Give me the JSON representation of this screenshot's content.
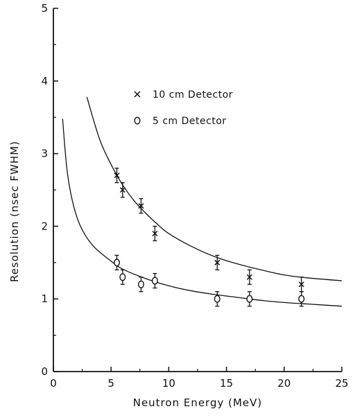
{
  "chart_data": {
    "type": "scatter",
    "title": "",
    "xlabel": "Neutron Energy (MeV)",
    "ylabel": "Resolution (nsec FWHM)",
    "xlim": [
      0,
      25
    ],
    "ylim": [
      0,
      5
    ],
    "xticks": [
      0,
      5,
      10,
      15,
      20,
      25
    ],
    "yticks": [
      0,
      1,
      2,
      3,
      4,
      5
    ],
    "grid": false,
    "legend_position": "top-center",
    "series": [
      {
        "name": "10 cm Detector",
        "marker": "x",
        "points": [
          {
            "x": 5.5,
            "y": 2.7,
            "err": 0.1
          },
          {
            "x": 6.0,
            "y": 2.5,
            "err": 0.1
          },
          {
            "x": 7.6,
            "y": 2.28,
            "err": 0.1
          },
          {
            "x": 8.8,
            "y": 1.9,
            "err": 0.1
          },
          {
            "x": 14.2,
            "y": 1.5,
            "err": 0.1
          },
          {
            "x": 17.0,
            "y": 1.3,
            "err": 0.1
          },
          {
            "x": 21.5,
            "y": 1.2,
            "err": 0.1
          }
        ],
        "curve": [
          {
            "x": 2.9,
            "y": 3.78
          },
          {
            "x": 4,
            "y": 3.2
          },
          {
            "x": 5,
            "y": 2.85
          },
          {
            "x": 6,
            "y": 2.57
          },
          {
            "x": 7,
            "y": 2.35
          },
          {
            "x": 8,
            "y": 2.18
          },
          {
            "x": 9,
            "y": 2.03
          },
          {
            "x": 10,
            "y": 1.9
          },
          {
            "x": 12,
            "y": 1.72
          },
          {
            "x": 14,
            "y": 1.58
          },
          {
            "x": 16,
            "y": 1.48
          },
          {
            "x": 18,
            "y": 1.4
          },
          {
            "x": 20,
            "y": 1.33
          },
          {
            "x": 22,
            "y": 1.29
          },
          {
            "x": 25,
            "y": 1.25
          }
        ]
      },
      {
        "name": "5 cm Detector",
        "marker": "o",
        "points": [
          {
            "x": 5.5,
            "y": 1.5,
            "err": 0.1
          },
          {
            "x": 6.0,
            "y": 1.3,
            "err": 0.1
          },
          {
            "x": 7.6,
            "y": 1.2,
            "err": 0.1
          },
          {
            "x": 8.8,
            "y": 1.25,
            "err": 0.1
          },
          {
            "x": 14.2,
            "y": 1.0,
            "err": 0.1
          },
          {
            "x": 17.0,
            "y": 1.0,
            "err": 0.1
          },
          {
            "x": 21.5,
            "y": 1.0,
            "err": 0.1
          }
        ],
        "curve": [
          {
            "x": 0.8,
            "y": 3.48
          },
          {
            "x": 1.2,
            "y": 2.75
          },
          {
            "x": 1.8,
            "y": 2.25
          },
          {
            "x": 2.5,
            "y": 1.95
          },
          {
            "x": 3.5,
            "y": 1.72
          },
          {
            "x": 5,
            "y": 1.52
          },
          {
            "x": 6,
            "y": 1.41
          },
          {
            "x": 8,
            "y": 1.28
          },
          {
            "x": 10,
            "y": 1.18
          },
          {
            "x": 12,
            "y": 1.11
          },
          {
            "x": 14,
            "y": 1.06
          },
          {
            "x": 16,
            "y": 1.02
          },
          {
            "x": 18,
            "y": 0.98
          },
          {
            "x": 20,
            "y": 0.95
          },
          {
            "x": 22,
            "y": 0.93
          },
          {
            "x": 25,
            "y": 0.9
          }
        ]
      }
    ]
  }
}
